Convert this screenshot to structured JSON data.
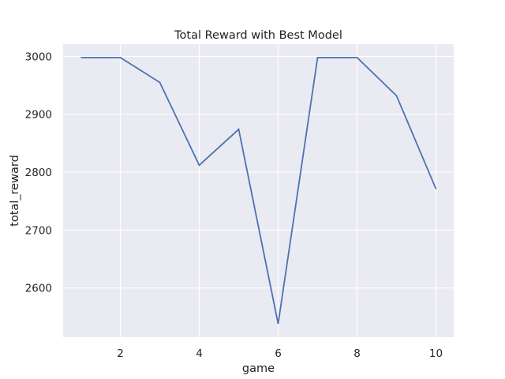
{
  "chart_data": {
    "type": "line",
    "title": "Total Reward with Best Model",
    "xlabel": "game",
    "ylabel": "total_reward",
    "x": [
      1,
      2,
      3,
      4,
      5,
      6,
      7,
      8,
      9,
      10
    ],
    "series": [
      {
        "values": [
          2998,
          2998,
          2955,
          2812,
          2874,
          2538,
          2998,
          2998,
          2932,
          2771
        ]
      }
    ],
    "x_ticks": [
      2,
      4,
      6,
      8,
      10
    ],
    "y_ticks": [
      2600,
      2700,
      2800,
      2900,
      3000
    ],
    "xlim": [
      0.55,
      10.45
    ],
    "ylim": [
      2515,
      3021
    ],
    "grid": true,
    "colors": {
      "background": "#eaeaf2",
      "grid": "#ffffff",
      "line": "#4c72b0"
    }
  }
}
